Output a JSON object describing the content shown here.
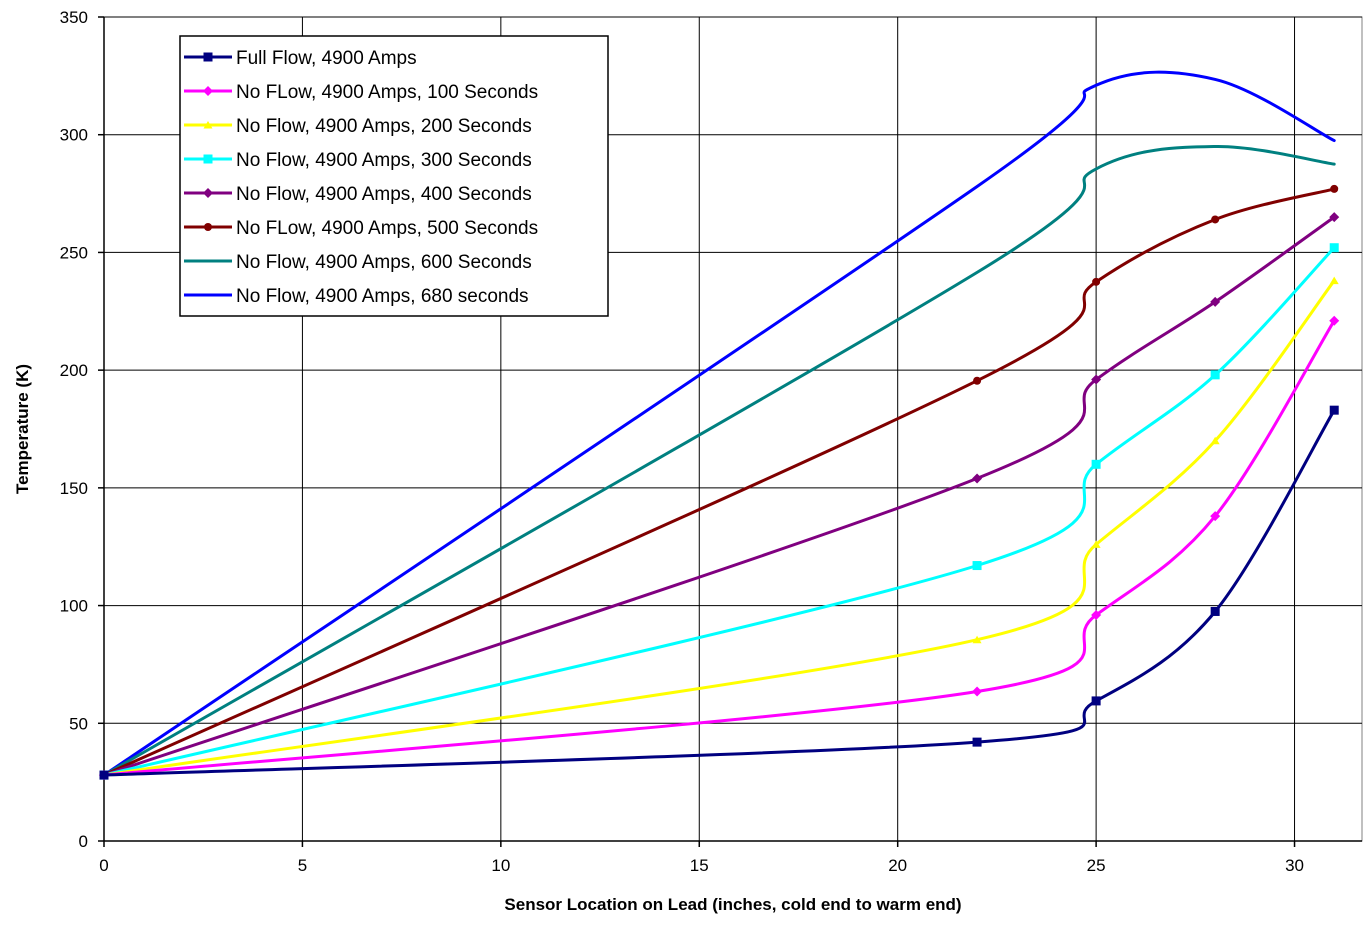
{
  "chart_data": {
    "type": "line",
    "title": "",
    "xlabel": "Sensor Location on Lead (inches, cold end to warm end)",
    "ylabel": "Temperature (K)",
    "xlim": [
      0,
      31.7
    ],
    "ylim": [
      0,
      350
    ],
    "xticks": [
      0,
      5,
      10,
      15,
      20,
      25,
      30
    ],
    "yticks": [
      0,
      50,
      100,
      150,
      200,
      250,
      300,
      350
    ],
    "grid": true,
    "legend_position": "top-left",
    "x": [
      0,
      22,
      25,
      28,
      31
    ],
    "series": [
      {
        "name": "Full Flow, 4900 Amps",
        "color": "#000080",
        "marker": "square",
        "values": [
          28,
          42,
          59.5,
          97.5,
          183
        ]
      },
      {
        "name": "No FLow, 4900 Amps, 100 Seconds",
        "color": "#FF00FF",
        "marker": "diamond",
        "values": [
          28,
          63.5,
          96,
          138,
          221
        ]
      },
      {
        "name": "No Flow, 4900 Amps, 200 Seconds",
        "color": "#FFFF00",
        "marker": "triangle",
        "values": [
          28,
          85.5,
          126,
          170,
          238
        ]
      },
      {
        "name": "No Flow, 4900 Amps, 300 Seconds",
        "color": "#00FFFF",
        "marker": "square",
        "values": [
          28,
          117,
          160,
          198,
          252
        ]
      },
      {
        "name": "No Flow, 4900 Amps, 400 Seconds",
        "color": "#800080",
        "marker": "diamond",
        "values": [
          28,
          154,
          196,
          229,
          265
        ]
      },
      {
        "name": "No FLow, 4900 Amps, 500 Seconds",
        "color": "#800000",
        "marker": "circle",
        "values": [
          28,
          195.5,
          237.5,
          264,
          277
        ]
      },
      {
        "name": "No Flow, 4900 Amps, 600 Seconds",
        "color": "#008080",
        "marker": "none",
        "values": [
          28,
          241.5,
          285.5,
          295,
          287.5
        ]
      },
      {
        "name": "No Flow, 4900 Amps, 680 seconds",
        "color": "#0000FF",
        "marker": "none",
        "values": [
          28,
          278,
          321,
          323.5,
          297.5
        ]
      }
    ]
  }
}
